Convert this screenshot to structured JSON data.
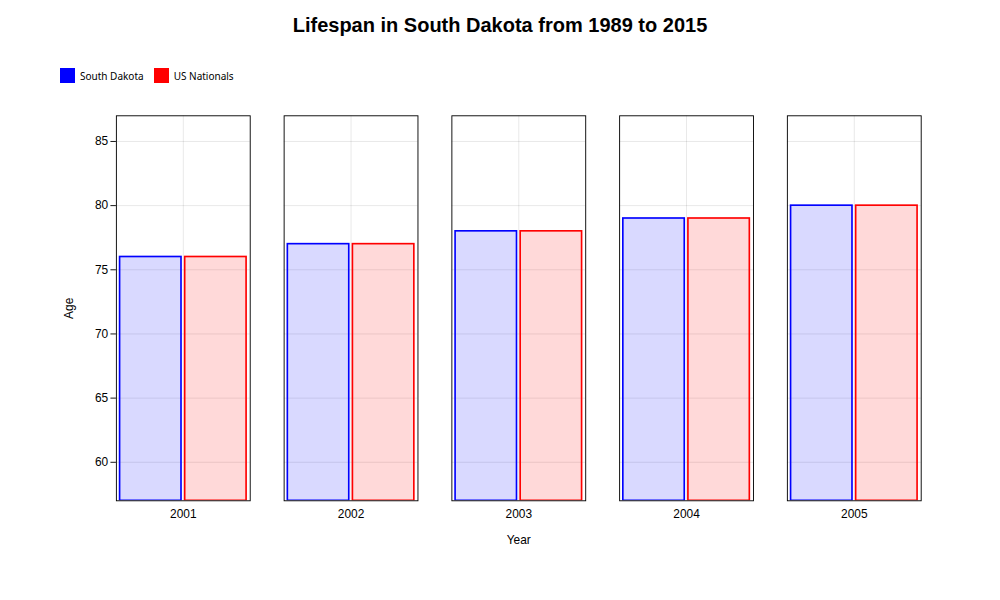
{
  "chart_data": {
    "type": "bar",
    "title": "Lifespan in South Dakota from 1989 to 2015",
    "xlabel": "Year",
    "ylabel": "Age",
    "categories": [
      "2001",
      "2002",
      "2003",
      "2004",
      "2005"
    ],
    "series": [
      {
        "name": "South Dakota",
        "color": "#0000ff",
        "values": [
          76,
          77,
          78,
          79,
          80
        ]
      },
      {
        "name": "US Nationals",
        "color": "#ff0000",
        "values": [
          76,
          77,
          78,
          79,
          80
        ]
      }
    ],
    "ylim": [
      57,
      87
    ],
    "yticks": [
      60,
      65,
      70,
      75,
      80,
      85
    ],
    "grid": true,
    "legend": "top"
  }
}
